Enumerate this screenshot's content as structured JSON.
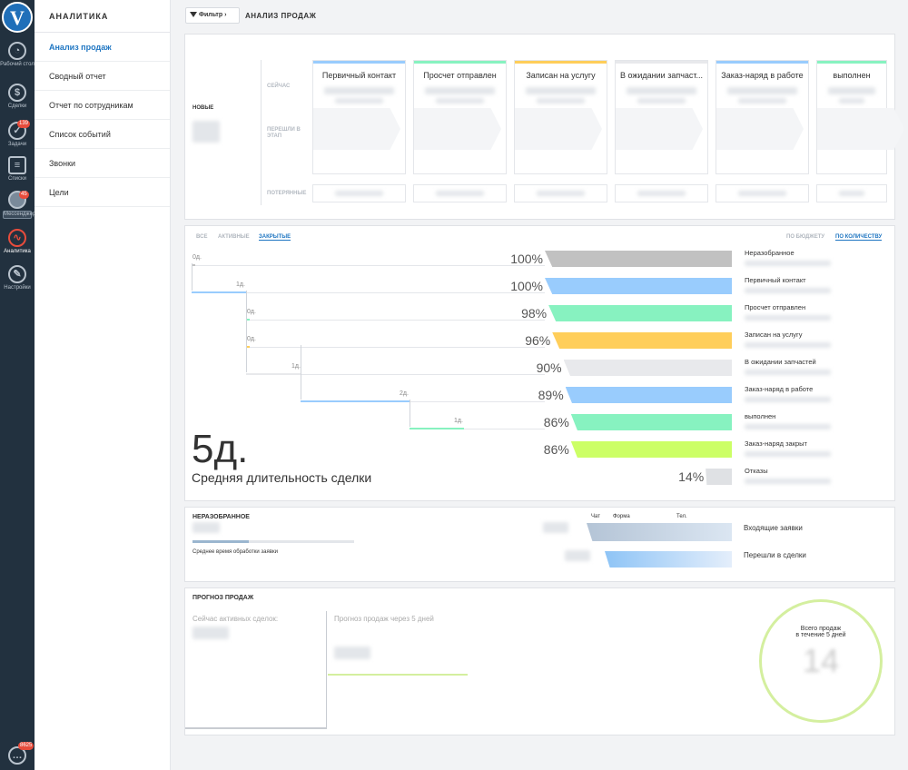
{
  "nav": {
    "items": [
      {
        "label": "Рабочий стол",
        "icon": "speedometer-icon"
      },
      {
        "label": "Сделки",
        "icon": "dollar-icon"
      },
      {
        "label": "Задачи",
        "icon": "check-circle-icon",
        "badge": "139"
      },
      {
        "label": "Списки",
        "icon": "list-icon"
      },
      {
        "label": "Мессенджер",
        "icon": "chat-icon",
        "badge": "45"
      },
      {
        "label": "Аналитика",
        "icon": "analytics-icon"
      },
      {
        "label": "Настройки",
        "icon": "wrench-icon"
      }
    ],
    "chat_badge": "8625"
  },
  "submenu": {
    "title": "АНАЛИТИКА",
    "items": [
      "Анализ продаж",
      "Сводный отчет",
      "Отчет по сотрудникам",
      "Список событий",
      "Звонки",
      "Цели"
    ]
  },
  "topbar": {
    "filter": "Фильтр",
    "breadcrumb": "АНАЛИЗ ПРОДАЖ"
  },
  "pipeline": {
    "new_label": "НОВЫЕ",
    "now_label": "СЕЙЧАС",
    "moved_label": "ПЕРЕШЛИ В ЭТАП",
    "lost_label": "ПОТЕРЯННЫЕ",
    "stages": [
      {
        "name": "Первичный контакт",
        "color": "#99ccfd"
      },
      {
        "name": "Просчет отправлен",
        "color": "#87f2c0"
      },
      {
        "name": "Записан на услугу",
        "color": "#ffce5a"
      },
      {
        "name": "В ожидании запчаст...",
        "color": "#e8e9ec"
      },
      {
        "name": "Заказ-наряд в работе",
        "color": "#99ccfd"
      },
      {
        "name": "выполнен",
        "color": "#87f2c0"
      }
    ]
  },
  "funnel": {
    "tabs": [
      "ВСЕ",
      "АКТИВНЫЕ",
      "ЗАКРЫТЫЕ"
    ],
    "sort_tabs": [
      "ПО БЮДЖЕТУ",
      "ПО КОЛИЧЕСТВУ"
    ],
    "avg_value": "5д.",
    "avg_label": "Средняя длительность сделки",
    "rows": [
      {
        "label": "Неразобранное",
        "pct": "100%",
        "pct_value": 100,
        "dur": "0д.",
        "color": "#c1c1c1"
      },
      {
        "label": "Первичный контакт",
        "pct": "100%",
        "pct_value": 100,
        "dur": "1д.",
        "color": "#99ccfd"
      },
      {
        "label": "Просчет отправлен",
        "pct": "98%",
        "pct_value": 98,
        "dur": "0д.",
        "color": "#87f2c0"
      },
      {
        "label": "Записан на услугу",
        "pct": "96%",
        "pct_value": 96,
        "dur": "0д.",
        "color": "#ffce5a"
      },
      {
        "label": "В ожидании запчастей",
        "pct": "90%",
        "pct_value": 90,
        "dur": "1д.",
        "color": "#e8e9ec"
      },
      {
        "label": "Заказ-наряд в работе",
        "pct": "89%",
        "pct_value": 89,
        "dur": "2д.",
        "color": "#99ccfd"
      },
      {
        "label": "выполнен",
        "pct": "86%",
        "pct_value": 86,
        "dur": "1д.",
        "color": "#87f2c0"
      },
      {
        "label": "Заказ-наряд закрыт",
        "pct": "86%",
        "pct_value": 86,
        "dur": "",
        "color": "#ccff66"
      },
      {
        "label": "Отказы",
        "pct": "14%",
        "pct_value": 14,
        "dur": "",
        "color": "#dfe1e4"
      }
    ]
  },
  "unsorted": {
    "title": "НЕРАЗОБРАННОЕ",
    "avg_label": "Среднее время обработки заявки",
    "cols": [
      "Чат",
      "Форма",
      "Тел."
    ],
    "rows": [
      "Входящие заявки",
      "Перешли в сделки"
    ]
  },
  "forecast": {
    "title": "ПРОГНОЗ ПРОДАЖ",
    "active_label": "Сейчас активных сделок:",
    "forecast_label": "Прогноз продаж через 5 дней",
    "total_label_1": "Всего продаж",
    "total_label_2": "в течение 5 дней",
    "total_value": "14"
  }
}
